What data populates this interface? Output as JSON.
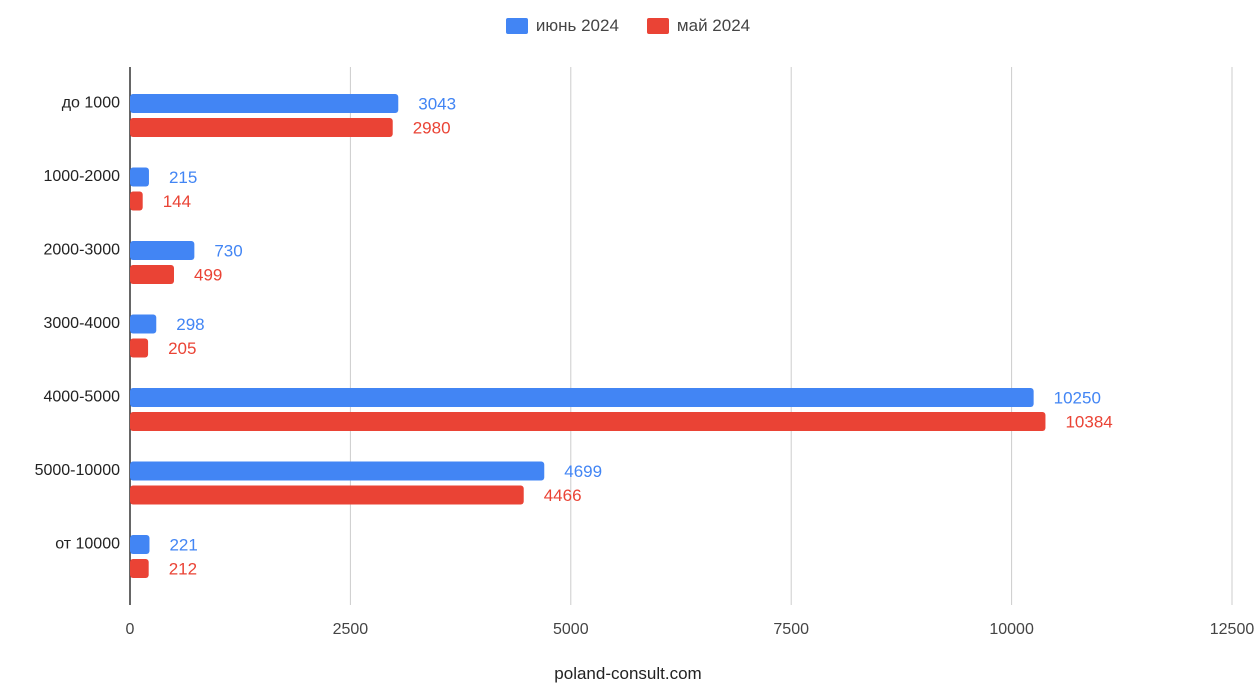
{
  "chart_data": {
    "type": "bar",
    "orientation": "horizontal",
    "categories": [
      "до 1000",
      "1000-2000",
      "2000-3000",
      "3000-4000",
      "4000-5000",
      "5000-10000",
      "от 10000"
    ],
    "series": [
      {
        "name": "июнь 2024",
        "color": "#4285f4",
        "values": [
          3043,
          215,
          730,
          298,
          10250,
          4699,
          221
        ]
      },
      {
        "name": "май 2024",
        "color": "#ea4335",
        "values": [
          2980,
          144,
          499,
          205,
          10384,
          4466,
          212
        ]
      }
    ],
    "xlim": [
      0,
      12500
    ],
    "x_ticks": [
      "0",
      "2500",
      "5000",
      "7500",
      "10000",
      "12500"
    ],
    "grid": true,
    "legend_position": "top",
    "data_labels": true,
    "caption": "poland-consult.com"
  }
}
